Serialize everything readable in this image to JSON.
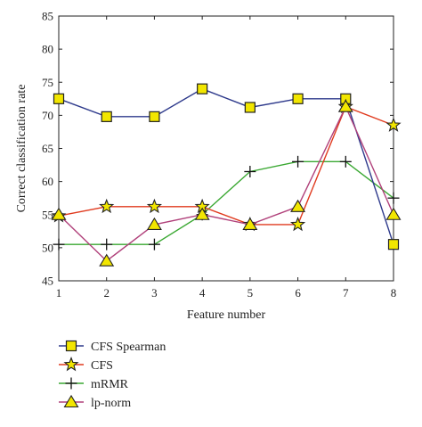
{
  "chart_data": {
    "type": "line",
    "title": "",
    "xlabel": "Feature number",
    "ylabel": "Correct classification rate",
    "x": [
      1,
      2,
      3,
      4,
      5,
      6,
      7,
      8
    ],
    "xlim": [
      1,
      8
    ],
    "ylim": [
      45,
      85
    ],
    "x_ticks": [
      "1",
      "2",
      "3",
      "4",
      "5",
      "6",
      "7",
      "8"
    ],
    "y_ticks": [
      "45",
      "50",
      "55",
      "60",
      "65",
      "70",
      "75",
      "80",
      "85"
    ],
    "grid": false,
    "legend_placement": "bottom-left, below plot",
    "series": [
      {
        "name": "CFS Spearman",
        "marker": "square",
        "line_color": "#2e3a8c",
        "marker_fill": "#f2e600",
        "marker_stroke": "#222222",
        "values": [
          72.5,
          69.8,
          69.8,
          74.0,
          71.2,
          72.5,
          72.5,
          50.5
        ]
      },
      {
        "name": "CFS",
        "marker": "star",
        "line_color": "#e03a1e",
        "marker_fill": "#f2e600",
        "marker_stroke": "#222222",
        "values": [
          54.8,
          56.2,
          56.2,
          56.2,
          53.5,
          53.5,
          71.3,
          68.5
        ]
      },
      {
        "name": "mRMR",
        "marker": "plus",
        "line_color": "#3aa832",
        "marker_fill": "none",
        "marker_stroke": "#111111",
        "values": [
          50.5,
          50.5,
          50.5,
          55.0,
          61.5,
          63.0,
          63.0,
          57.5
        ]
      },
      {
        "name": "lp-norm",
        "marker": "triangle",
        "line_color": "#b0407a",
        "marker_fill": "#f2e600",
        "marker_stroke": "#222222",
        "values": [
          55.0,
          48.0,
          53.5,
          55.0,
          53.5,
          56.2,
          71.3,
          55.0
        ]
      }
    ]
  }
}
